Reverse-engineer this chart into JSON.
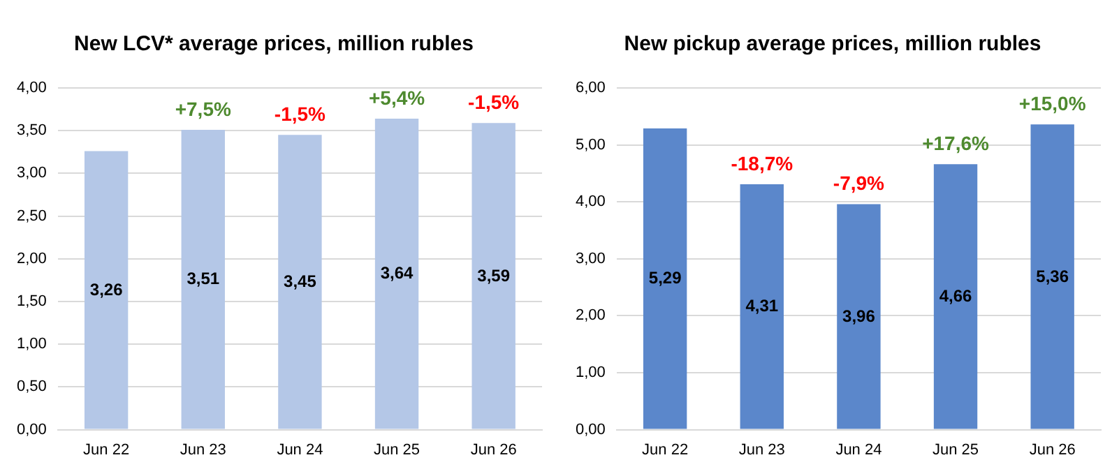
{
  "chart_data": [
    {
      "type": "bar",
      "title": "New LCV* average prices, million rubles",
      "categories": [
        "Jun 22",
        "Jun 23",
        "Jun 24",
        "Jun 25",
        "Jun 26"
      ],
      "values": [
        3.26,
        3.51,
        3.45,
        3.64,
        3.59
      ],
      "value_labels": [
        "3,26",
        "3,51",
        "3,45",
        "3,64",
        "3,59"
      ],
      "color": "#b4c7e7",
      "ylim": [
        0,
        4
      ],
      "yticks": [
        {
          "value": 0,
          "label": "0,00"
        },
        {
          "value": 0.5,
          "label": "0,50"
        },
        {
          "value": 1,
          "label": "1,00"
        },
        {
          "value": 1.5,
          "label": "1,50"
        },
        {
          "value": 2,
          "label": "2,00"
        },
        {
          "value": 2.5,
          "label": "2,50"
        },
        {
          "value": 3,
          "label": "3,00"
        },
        {
          "value": 3.5,
          "label": "3,50"
        },
        {
          "value": 4,
          "label": "4,00"
        }
      ],
      "grid": "y",
      "annotations": [
        {
          "text": "+7,5%",
          "x": "Jun 23",
          "y": 3.51
        },
        {
          "text": "-1,5%",
          "x": "Jun 24",
          "y": 3.45
        },
        {
          "text": "+5,4%",
          "x": "Jun 25",
          "y": 3.64
        },
        {
          "text": "-1,5%",
          "x": "Jun 26",
          "y": 3.59
        }
      ]
    },
    {
      "type": "bar",
      "title": "New pickup average prices, million rubles",
      "categories": [
        "Jun 22",
        "Jun 23",
        "Jun 24",
        "Jun 25",
        "Jun 26"
      ],
      "values": [
        5.29,
        4.31,
        3.96,
        4.66,
        5.36
      ],
      "value_labels": [
        "5,29",
        "4,31",
        "3,96",
        "4,66",
        "5,36"
      ],
      "color": "#5b87cb",
      "ylim": [
        0,
        6
      ],
      "yticks": [
        {
          "value": 0,
          "label": "0,00"
        },
        {
          "value": 1,
          "label": "1,00"
        },
        {
          "value": 2,
          "label": "2,00"
        },
        {
          "value": 3,
          "label": "3,00"
        },
        {
          "value": 4,
          "label": "4,00"
        },
        {
          "value": 5,
          "label": "5,00"
        },
        {
          "value": 6,
          "label": "6,00"
        }
      ],
      "grid": "y",
      "annotations": [
        {
          "text": "-18,7%",
          "x": "Jun 23",
          "y": 4.31
        },
        {
          "text": "-7,9%",
          "x": "Jun 24",
          "y": 3.96
        },
        {
          "text": "+17,6%",
          "x": "Jun 25",
          "y": 4.66
        },
        {
          "text": "+15,0%",
          "x": "Jun 26",
          "y": 5.36
        }
      ]
    }
  ]
}
